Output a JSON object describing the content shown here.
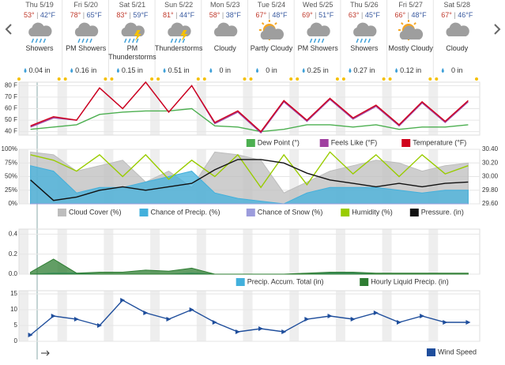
{
  "forecast": [
    {
      "day": "Thu 5/19",
      "high": "53°",
      "low": "42°F",
      "condition": "Showers",
      "precip": "0.04 in"
    },
    {
      "day": "Fri 5/20",
      "high": "78°",
      "low": "65°F",
      "condition": "PM Showers",
      "precip": "0.16 in"
    },
    {
      "day": "Sat 5/21",
      "high": "83°",
      "low": "59°F",
      "condition": "PM Thunderstorms",
      "precip": "0.15 in"
    },
    {
      "day": "Sun 5/22",
      "high": "81°",
      "low": "44°F",
      "condition": "Thunderstorms",
      "precip": "0.51 in"
    },
    {
      "day": "Mon 5/23",
      "high": "58°",
      "low": "38°F",
      "condition": "Cloudy",
      "precip": "0 in"
    },
    {
      "day": "Tue 5/24",
      "high": "67°",
      "low": "48°F",
      "condition": "Partly Cloudy",
      "precip": "0 in"
    },
    {
      "day": "Wed 5/25",
      "high": "69°",
      "low": "51°F",
      "condition": "PM Showers",
      "precip": "0.25 in"
    },
    {
      "day": "Thu 5/26",
      "high": "63°",
      "low": "45°F",
      "condition": "Showers",
      "precip": "0.27 in"
    },
    {
      "day": "Fri 5/27",
      "high": "66°",
      "low": "48°F",
      "condition": "Mostly Cloudy",
      "precip": "0.12 in"
    },
    {
      "day": "Sat 5/28",
      "high": "67°",
      "low": "46°F",
      "condition": "Cloudy",
      "precip": "0 in"
    }
  ],
  "chart_data": [
    {
      "type": "line",
      "ylim": [
        37,
        83
      ],
      "yticks": [
        {
          "value": 80,
          "label": "80 F"
        },
        {
          "value": 70,
          "label": "70 F"
        },
        {
          "value": 60,
          "label": "60 F"
        },
        {
          "value": 50,
          "label": "50 F"
        },
        {
          "value": 40,
          "label": "40 F"
        }
      ],
      "series": [
        {
          "name": "Dew Point (°)",
          "color": "#4caf50",
          "style": "line",
          "values": [
            42,
            44,
            46,
            55,
            57,
            58,
            58,
            60,
            45,
            44,
            40,
            42,
            46,
            46,
            44,
            46,
            42,
            44,
            44,
            46
          ]
        },
        {
          "name": "Feels Like (°F)",
          "color": "#a040a0",
          "style": "line",
          "values": [
            44,
            52,
            50,
            78,
            60,
            83,
            57,
            80,
            47,
            57,
            39,
            66,
            49,
            68,
            51,
            62,
            45,
            65,
            48,
            66
          ]
        },
        {
          "name": "Temperature (°F)",
          "color": "#d0021b",
          "style": "line",
          "values": [
            45,
            53,
            50,
            78,
            60,
            83,
            57,
            80,
            48,
            58,
            40,
            67,
            50,
            69,
            52,
            63,
            46,
            66,
            49,
            67
          ]
        }
      ]
    },
    {
      "type": "line",
      "ylim": [
        0,
        100
      ],
      "yticks": [
        {
          "value": 100,
          "label": "100%"
        },
        {
          "value": 75,
          "label": "75%"
        },
        {
          "value": 50,
          "label": "50%"
        },
        {
          "value": 25,
          "label": "25%"
        },
        {
          "value": 0,
          "label": "0%"
        }
      ],
      "y2lim": [
        29.6,
        30.4
      ],
      "y2ticks": [
        {
          "value": 30.4,
          "label": "30.40"
        },
        {
          "value": 30.2,
          "label": "30.20"
        },
        {
          "value": 30.0,
          "label": "30.00"
        },
        {
          "value": 29.8,
          "label": "29.80"
        },
        {
          "value": 29.6,
          "label": "29.60"
        }
      ],
      "series": [
        {
          "name": "Cloud Cover (%)",
          "color": "#bdbdbd",
          "style": "area",
          "values": [
            95,
            90,
            60,
            70,
            80,
            40,
            60,
            30,
            95,
            90,
            80,
            20,
            40,
            60,
            70,
            80,
            75,
            60,
            70,
            75
          ]
        },
        {
          "name": "Chance of Precip. (%)",
          "color": "#42b0dc",
          "style": "area",
          "values": [
            70,
            60,
            20,
            30,
            30,
            40,
            50,
            60,
            20,
            10,
            5,
            0,
            20,
            30,
            30,
            30,
            25,
            20,
            25,
            25
          ]
        },
        {
          "name": "Chance of Snow (%)",
          "color": "#9c9cdc",
          "style": "area",
          "values": [
            0,
            0,
            0,
            0,
            0,
            0,
            0,
            0,
            0,
            0,
            0,
            0,
            0,
            0,
            0,
            0,
            0,
            0,
            0,
            0
          ]
        },
        {
          "name": "Humidity (%)",
          "color": "#99cc00",
          "style": "line",
          "values": [
            90,
            80,
            60,
            90,
            50,
            90,
            45,
            80,
            50,
            90,
            30,
            90,
            35,
            95,
            55,
            90,
            50,
            90,
            55,
            70
          ]
        },
        {
          "name": "Pressure. (in)",
          "color": "#111111",
          "style": "line",
          "axis": "y2",
          "values": [
            29.95,
            29.65,
            29.7,
            29.8,
            29.85,
            29.8,
            29.85,
            29.9,
            30.1,
            30.25,
            30.25,
            30.2,
            30.05,
            29.95,
            29.9,
            29.85,
            29.9,
            29.85,
            29.9,
            29.92
          ]
        }
      ]
    },
    {
      "type": "line",
      "ylim": [
        0,
        0.45
      ],
      "yticks": [
        {
          "value": 0,
          "label": "0.0"
        },
        0.2,
        0.4
      ],
      "series": [
        {
          "name": "Precip. Accum. Total (in)",
          "color": "#42b0dc",
          "style": "area",
          "values": [
            0,
            0.01,
            0.01,
            0,
            0,
            0,
            0,
            0.01,
            0,
            0,
            0,
            0,
            0,
            0.01,
            0.01,
            0,
            0,
            0,
            0,
            0
          ]
        },
        {
          "name": "Hourly Liquid Precip. (in)",
          "color": "#2e7d32",
          "style": "area",
          "values": [
            0.02,
            0.15,
            0.01,
            0.02,
            0.02,
            0.04,
            0.03,
            0.06,
            0,
            0,
            0,
            0,
            0.01,
            0.02,
            0.02,
            0.01,
            0.01,
            0.01,
            0.01,
            0.01
          ]
        }
      ]
    },
    {
      "type": "line",
      "ylim": [
        0,
        16
      ],
      "yticks": [
        0,
        5,
        10,
        15
      ],
      "series": [
        {
          "name": "Wind Speed",
          "color": "#1f4e9c",
          "style": "line",
          "values": [
            2,
            8,
            7,
            5,
            13,
            9,
            7,
            10,
            6,
            3,
            4,
            3,
            7,
            8,
            7,
            9,
            6,
            8,
            6,
            6
          ]
        }
      ]
    }
  ]
}
